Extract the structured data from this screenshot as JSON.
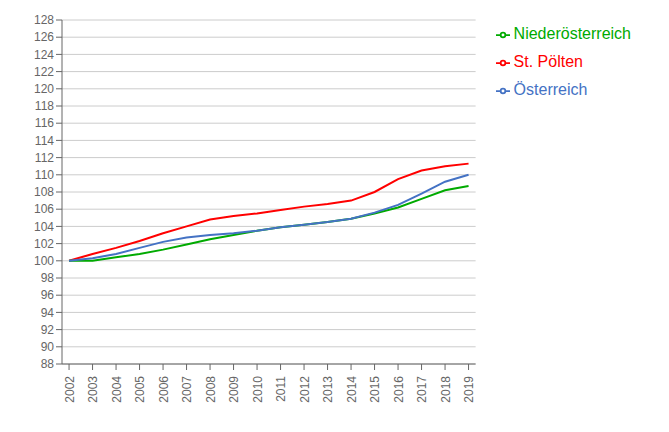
{
  "chart_data": {
    "type": "line",
    "x": [
      2002,
      2003,
      2004,
      2005,
      2006,
      2007,
      2008,
      2009,
      2010,
      2011,
      2012,
      2013,
      2014,
      2015,
      2016,
      2017,
      2018,
      2019
    ],
    "series": [
      {
        "name": "St. Pölten",
        "color": "#ff0000",
        "values": [
          100.0,
          100.8,
          101.5,
          102.3,
          103.2,
          104.0,
          104.8,
          105.2,
          105.5,
          105.9,
          106.3,
          106.6,
          107.0,
          108.0,
          109.5,
          110.5,
          111.0,
          111.3
        ]
      },
      {
        "name": "Niederösterreich",
        "color": "#00aa00",
        "values": [
          100.0,
          100.0,
          100.4,
          100.8,
          101.3,
          101.9,
          102.5,
          103.0,
          103.5,
          103.9,
          104.2,
          104.5,
          104.9,
          105.5,
          106.2,
          107.2,
          108.2,
          108.7
        ]
      },
      {
        "name": "Österreich",
        "color": "#4472c4",
        "values": [
          100.0,
          100.3,
          100.8,
          101.5,
          102.2,
          102.7,
          103.0,
          103.2,
          103.5,
          103.9,
          104.2,
          104.5,
          104.9,
          105.6,
          106.5,
          107.8,
          109.2,
          110.0
        ]
      }
    ],
    "xlim": [
      2001.7,
      2019.3
    ],
    "xticks": [
      2002,
      2003,
      2004,
      2005,
      2006,
      2007,
      2008,
      2009,
      2010,
      2011,
      2012,
      2013,
      2014,
      2015,
      2016,
      2017,
      2018,
      2019
    ],
    "ylim": [
      88,
      128
    ],
    "yticks": [
      88,
      90,
      92,
      94,
      96,
      98,
      100,
      102,
      104,
      106,
      108,
      110,
      112,
      114,
      116,
      118,
      120,
      122,
      124,
      126,
      128
    ],
    "grid": true,
    "legend": "right"
  }
}
